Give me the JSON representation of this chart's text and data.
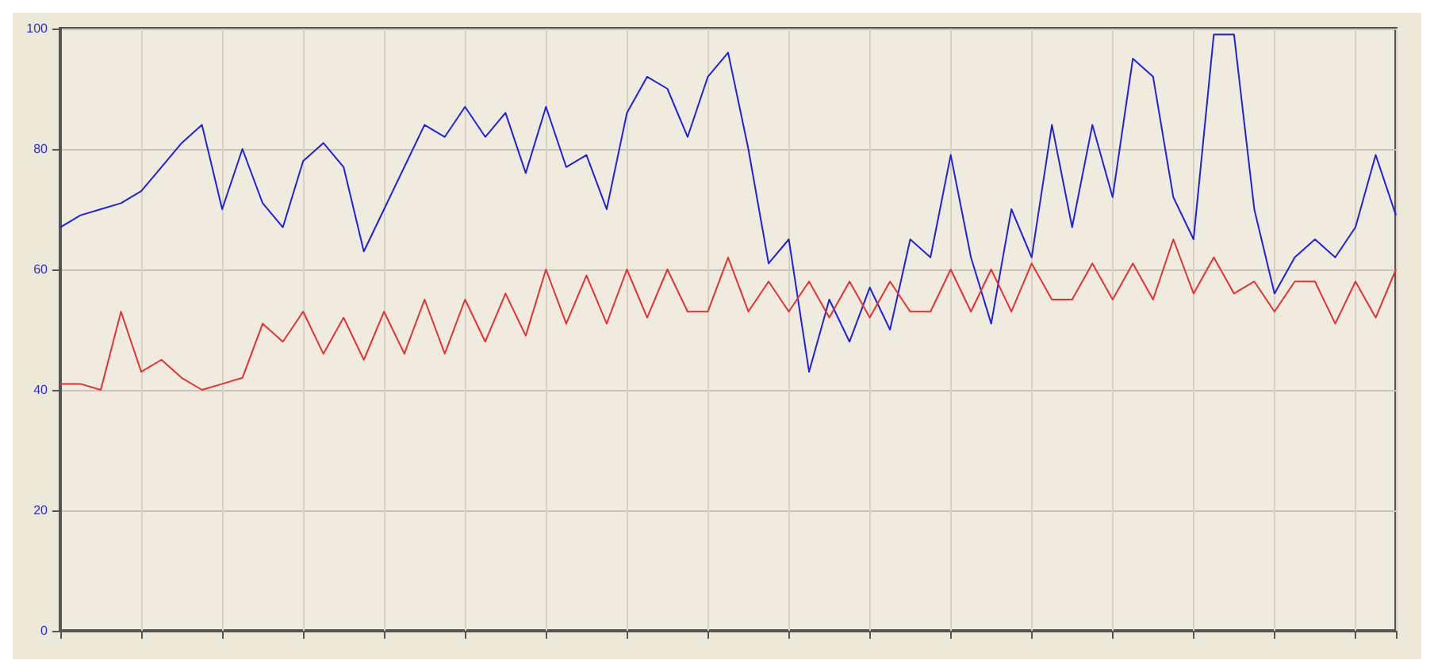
{
  "chart_data": {
    "type": "line",
    "categories": [
      null,
      null,
      null,
      null,
      null,
      null,
      null,
      null,
      null,
      null,
      null,
      null,
      null,
      null,
      null,
      null,
      null,
      null,
      null,
      null,
      null,
      null,
      null,
      null,
      null,
      null,
      null,
      null,
      null,
      null,
      null,
      null,
      null,
      null,
      null,
      null,
      null,
      null,
      null,
      null,
      null,
      null,
      null,
      null,
      null,
      null,
      null,
      null,
      null,
      null,
      null,
      null,
      null,
      null,
      null,
      null,
      null,
      null,
      null,
      null,
      null,
      null,
      null,
      null,
      null,
      null,
      null
    ],
    "ylim": [
      0,
      100
    ],
    "yticks": [
      0,
      20,
      40,
      60,
      80,
      100
    ],
    "grid": true,
    "tick_labels": "y",
    "marker": "none",
    "line_style": "solid",
    "series": [
      {
        "color": "#2020e0",
        "values": [
          67,
          69,
          70,
          71,
          73,
          77,
          81,
          84,
          70,
          80,
          71,
          67,
          78,
          81,
          77,
          63,
          70,
          77,
          84,
          82,
          87,
          82,
          86,
          76,
          87,
          77,
          79,
          70,
          86,
          92,
          90,
          82,
          92,
          96,
          80,
          61,
          65,
          43,
          55,
          48,
          57,
          50,
          65,
          62,
          79,
          62,
          51,
          70,
          62,
          84,
          67,
          84,
          72,
          95,
          92,
          72,
          65,
          99,
          99,
          70,
          56,
          62,
          65,
          62,
          67,
          79,
          69
        ]
      },
      {
        "color": "#e83030",
        "values": [
          41,
          41,
          40,
          53,
          43,
          45,
          42,
          40,
          41,
          42,
          51,
          48,
          53,
          46,
          52,
          45,
          53,
          46,
          55,
          46,
          55,
          48,
          56,
          49,
          60,
          51,
          59,
          51,
          60,
          52,
          60,
          53,
          53,
          62,
          53,
          58,
          53,
          58,
          52,
          58,
          52,
          58,
          53,
          53,
          60,
          53,
          60,
          53,
          61,
          55,
          55,
          61,
          55,
          61,
          55,
          65,
          56,
          62,
          56,
          58,
          53,
          58,
          58,
          51,
          58,
          52,
          60
        ]
      }
    ]
  }
}
